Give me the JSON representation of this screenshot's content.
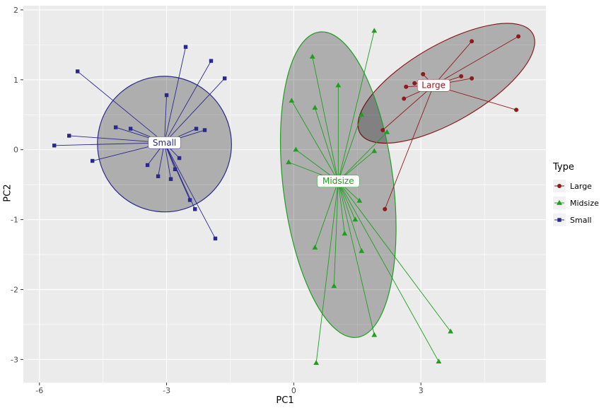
{
  "chart_data": {
    "type": "scatter",
    "title": "",
    "xlabel": "PC1",
    "ylabel": "PC2",
    "xlim": [
      -6.38,
      5.95
    ],
    "ylim": [
      -3.33,
      2.06
    ],
    "xticks": [
      -6,
      -3,
      0,
      3
    ],
    "yticks": [
      -3,
      -2,
      -1,
      0,
      1,
      2
    ],
    "grid": true,
    "legend_position": "right",
    "colors": {
      "panel_bg": "#EBEBEB",
      "grid": "#FFFFFF",
      "tick_label": "#4D4D4D",
      "tick_mark": "#333333",
      "legend_key_bg": "#F2F2F2",
      "ellipse_fill": "#000000",
      "ellipse_fill_alpha": 0.26,
      "label_box_bg": "#FFFFFF"
    },
    "legend": {
      "title": "Type",
      "entries": [
        "Large",
        "Midsize",
        "Small"
      ]
    },
    "series": [
      {
        "name": "Large",
        "color": "#8E1B1B",
        "marker": "circle",
        "centroid": [
          3.3,
          0.92
        ],
        "ellipse": {
          "cx": 3.6,
          "cy": 0.95,
          "rx": 2.35,
          "ry": 0.55,
          "angle": -30
        },
        "points": [
          [
            2.1,
            0.28
          ],
          [
            2.15,
            -0.85
          ],
          [
            2.6,
            0.73
          ],
          [
            2.65,
            0.9
          ],
          [
            2.85,
            0.95
          ],
          [
            3.05,
            1.08
          ],
          [
            3.95,
            1.05
          ],
          [
            4.2,
            1.02
          ],
          [
            4.2,
            1.55
          ],
          [
            5.25,
            0.57
          ],
          [
            5.3,
            1.62
          ]
        ]
      },
      {
        "name": "Midsize",
        "color": "#1F9E1F",
        "marker": "triangle",
        "centroid": [
          1.05,
          -0.45
        ],
        "ellipse": {
          "cx": 1.05,
          "cy": -0.5,
          "rx": 1.3,
          "ry": 2.2,
          "angle": -7
        },
        "points": [
          [
            0.44,
            1.33
          ],
          [
            1.9,
            1.7
          ],
          [
            -0.05,
            0.7
          ],
          [
            0.5,
            0.6
          ],
          [
            1.05,
            0.92
          ],
          [
            1.6,
            0.5
          ],
          [
            0.05,
            0.0
          ],
          [
            -0.12,
            -0.18
          ],
          [
            1.9,
            -0.02
          ],
          [
            2.2,
            0.25
          ],
          [
            1.55,
            -0.73
          ],
          [
            0.5,
            -1.4
          ],
          [
            0.95,
            -1.95
          ],
          [
            1.2,
            -1.2
          ],
          [
            1.45,
            -1.0
          ],
          [
            1.6,
            -1.45
          ],
          [
            1.9,
            -2.65
          ],
          [
            0.53,
            -3.05
          ],
          [
            3.42,
            -3.03
          ],
          [
            3.7,
            -2.6
          ]
        ]
      },
      {
        "name": "Small",
        "color": "#28288F",
        "marker": "square",
        "centroid": [
          -3.05,
          0.1
        ],
        "ellipse": {
          "cx": -3.05,
          "cy": 0.08,
          "rx": 1.58,
          "ry": 0.97,
          "angle": -8
        },
        "points": [
          [
            -5.65,
            0.06
          ],
          [
            -5.3,
            0.2
          ],
          [
            -5.1,
            1.12
          ],
          [
            -4.75,
            -0.16
          ],
          [
            -4.2,
            0.32
          ],
          [
            -3.85,
            0.3
          ],
          [
            -3.45,
            -0.22
          ],
          [
            -3.2,
            -0.38
          ],
          [
            -3.0,
            0.78
          ],
          [
            -2.9,
            -0.42
          ],
          [
            -2.8,
            -0.28
          ],
          [
            -2.7,
            -0.12
          ],
          [
            -2.55,
            1.47
          ],
          [
            -2.45,
            -0.72
          ],
          [
            -2.33,
            -0.85
          ],
          [
            -2.3,
            0.3
          ],
          [
            -2.1,
            0.28
          ],
          [
            -1.95,
            1.27
          ],
          [
            -1.63,
            1.02
          ],
          [
            -1.85,
            -1.27
          ]
        ]
      }
    ]
  }
}
